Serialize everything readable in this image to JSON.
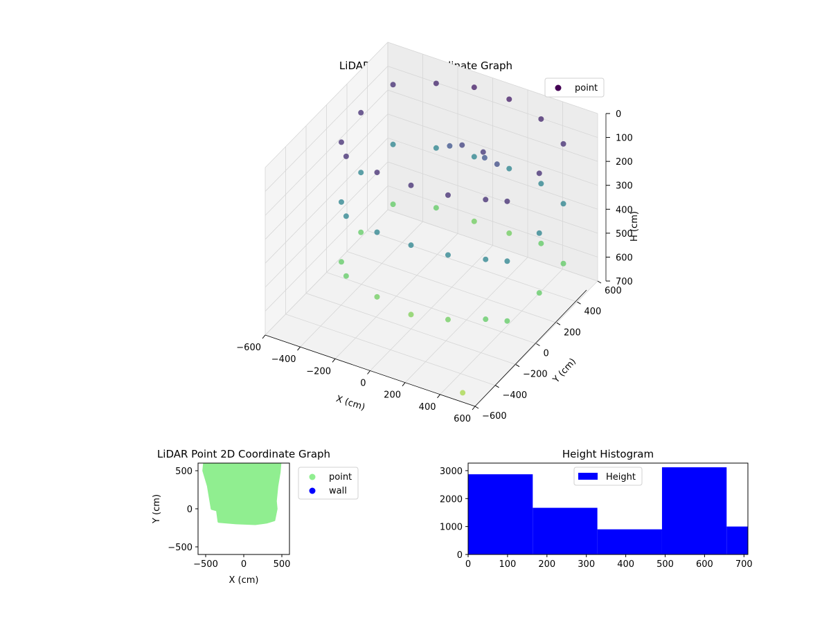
{
  "chart_data": [
    {
      "type": "scatter",
      "projection": "3d",
      "title": "LiDAR Point 3D Coordinate Graph",
      "xlabel": "X (cm)",
      "ylabel": "Y (cm)",
      "zlabel": "H (cm)",
      "xlim": [
        -600,
        600
      ],
      "ylim": [
        -600,
        600
      ],
      "zlim": [
        0,
        700
      ],
      "z_inverted": true,
      "x_ticks": [
        -600,
        -400,
        -200,
        0,
        200,
        400,
        600
      ],
      "y_ticks": [
        -600,
        -400,
        -200,
        0,
        200,
        400,
        600
      ],
      "z_ticks": [
        0,
        100,
        200,
        300,
        400,
        500,
        600,
        700
      ],
      "grid": true,
      "colormap": "viridis",
      "legend": {
        "placement": "upper right",
        "entries": [
          "point"
        ]
      },
      "series": [
        {
          "name": "point",
          "color": "#440154",
          "points": [
            [
              -500,
              480,
              100
            ],
            [
              -300,
              560,
              80
            ],
            [
              -100,
              590,
              60
            ],
            [
              100,
              590,
              60
            ],
            [
              300,
              560,
              80
            ],
            [
              480,
              470,
              100
            ],
            [
              -500,
              480,
              350
            ],
            [
              -300,
              560,
              350
            ],
            [
              -100,
              590,
              350
            ],
            [
              100,
              590,
              350
            ],
            [
              300,
              560,
              350
            ],
            [
              480,
              470,
              350
            ],
            [
              -500,
              480,
              600
            ],
            [
              -300,
              560,
              600
            ],
            [
              -100,
              590,
              620
            ],
            [
              100,
              590,
              620
            ],
            [
              300,
              560,
              600
            ],
            [
              480,
              470,
              600
            ],
            [
              -520,
              200,
              100
            ],
            [
              -520,
              200,
              350
            ],
            [
              -520,
              200,
              600
            ],
            [
              -480,
              -60,
              100
            ],
            [
              -480,
              -60,
              350
            ],
            [
              -480,
              -60,
              600
            ],
            [
              500,
              200,
              100
            ],
            [
              500,
              200,
              350
            ],
            [
              500,
              200,
              600
            ],
            [
              480,
              -80,
              100
            ],
            [
              480,
              -80,
              350
            ],
            [
              480,
              -80,
              600
            ],
            [
              -400,
              -150,
              100
            ],
            [
              -200,
              -190,
              100
            ],
            [
              0,
              -200,
              100
            ],
            [
              200,
              -180,
              100
            ],
            [
              380,
              -120,
              100
            ],
            [
              -400,
              -150,
              350
            ],
            [
              -200,
              -190,
              350
            ],
            [
              0,
              -200,
              350
            ],
            [
              200,
              -180,
              350
            ],
            [
              380,
              -120,
              350
            ],
            [
              -400,
              -150,
              600
            ],
            [
              -200,
              -190,
              620
            ],
            [
              0,
              -200,
              640
            ],
            [
              200,
              -180,
              620
            ],
            [
              380,
              -120,
              600
            ],
            [
              0,
              300,
              150
            ],
            [
              100,
              350,
              200
            ],
            [
              200,
              300,
              180
            ],
            [
              -100,
              350,
              200
            ],
            [
              150,
              250,
              120
            ],
            [
              500,
              -550,
              690
            ]
          ]
        }
      ]
    },
    {
      "type": "scatter",
      "title": "LiDAR Point 2D Coordinate Graph",
      "xlabel": "X (cm)",
      "ylabel": "Y (cm)",
      "xlim": [
        -600,
        600
      ],
      "ylim": [
        -600,
        600
      ],
      "x_ticks": [
        -500,
        0,
        500
      ],
      "y_ticks": [
        -500,
        0,
        500
      ],
      "legend": {
        "placement": "outside-right",
        "entries": [
          "point",
          "wall"
        ]
      },
      "series": [
        {
          "name": "point",
          "color": "#90ee90",
          "outline": [
            [
              -520,
              600
            ],
            [
              480,
              600
            ],
            [
              470,
              480
            ],
            [
              440,
              300
            ],
            [
              420,
              100
            ],
            [
              430,
              0
            ],
            [
              400,
              -150
            ],
            [
              300,
              -180
            ],
            [
              150,
              -200
            ],
            [
              -100,
              -190
            ],
            [
              -330,
              -170
            ],
            [
              -350,
              -20
            ],
            [
              -420,
              0
            ],
            [
              -470,
              300
            ],
            [
              -530,
              500
            ]
          ]
        },
        {
          "name": "wall",
          "color": "#0000ff",
          "points": []
        }
      ]
    },
    {
      "type": "bar",
      "subtype": "histogram",
      "title": "Height Histogram",
      "xlabel": "",
      "ylabel": "",
      "xlim": [
        0,
        710
      ],
      "ylim": [
        0,
        3270
      ],
      "x_ticks": [
        0,
        100,
        200,
        300,
        400,
        500,
        600,
        700
      ],
      "y_ticks": [
        0,
        1000,
        2000,
        3000
      ],
      "legend": {
        "placement": "upper center",
        "entries": [
          "Height"
        ]
      },
      "series": [
        {
          "name": "Height",
          "color": "#0000ff",
          "bin_edges": [
            0,
            164,
            328,
            492,
            656,
            710
          ],
          "counts": [
            2870,
            1670,
            900,
            3120,
            1000
          ]
        }
      ]
    }
  ]
}
